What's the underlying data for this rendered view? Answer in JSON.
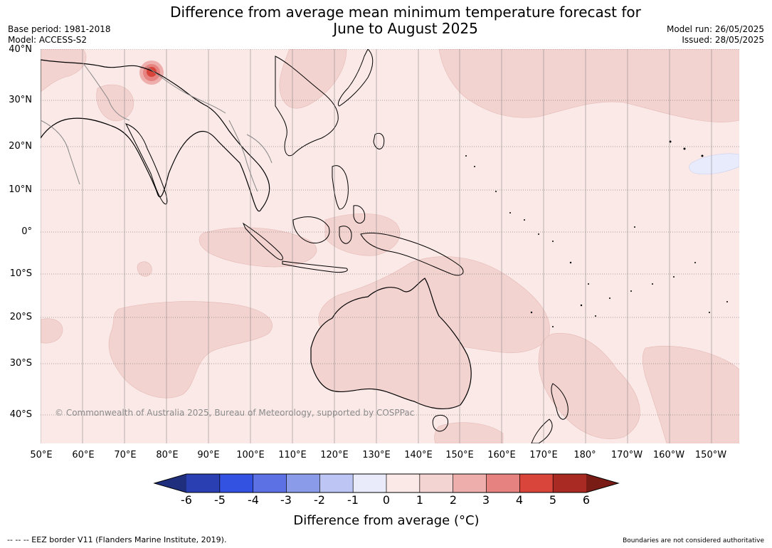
{
  "title": {
    "line1": "Difference from average mean minimum temperature forecast for",
    "line2": "June to August 2025"
  },
  "meta": {
    "base_period": "Base period: 1981-2018",
    "model": "Model: ACCESS-S2",
    "model_run": "Model run: 26/05/2025",
    "issued": "Issued: 28/05/2025"
  },
  "map": {
    "copyright": "© Commonwealth of Australia 2025, Bureau of Meteorology, supported by COSPPac",
    "lat_labels": [
      "40°N",
      "30°N",
      "20°N",
      "10°N",
      "0°",
      "10°S",
      "20°S",
      "30°S",
      "40°S"
    ],
    "lon_labels": [
      "50°E",
      "60°E",
      "70°E",
      "80°E",
      "90°E",
      "100°E",
      "110°E",
      "120°E",
      "130°E",
      "140°E",
      "150°E",
      "160°E",
      "170°E",
      "180°",
      "170°W",
      "160°W",
      "150°W"
    ],
    "colors": {
      "anomaly_0_1": "#fbe9e7",
      "anomaly_1_2": "#f3d3d0",
      "anomaly_neg1_0": "#e7ebfb",
      "anomaly_hot": "#d9453a",
      "coastline": "#000000",
      "border": "#888888"
    }
  },
  "colorbar": {
    "title": "Difference from average (°C)",
    "ticks": [
      "-6",
      "-5",
      "-4",
      "-3",
      "-2",
      "-1",
      "0",
      "1",
      "2",
      "3",
      "4",
      "5",
      "6"
    ],
    "colors": [
      "#1f2f7d",
      "#2a3fb2",
      "#3352e1",
      "#5c72e4",
      "#8a9ce9",
      "#bdc5f4",
      "#e9ebfb",
      "#fbe9e8",
      "#f4d4d2",
      "#eeafac",
      "#e68380",
      "#d9453a",
      "#a92a22",
      "#7a1c16"
    ]
  },
  "footer": {
    "eez": "--  --  -- EEZ border V11 (Flanders Marine Institute, 2019).",
    "boundaries": "Boundaries are not considered authoritative"
  }
}
